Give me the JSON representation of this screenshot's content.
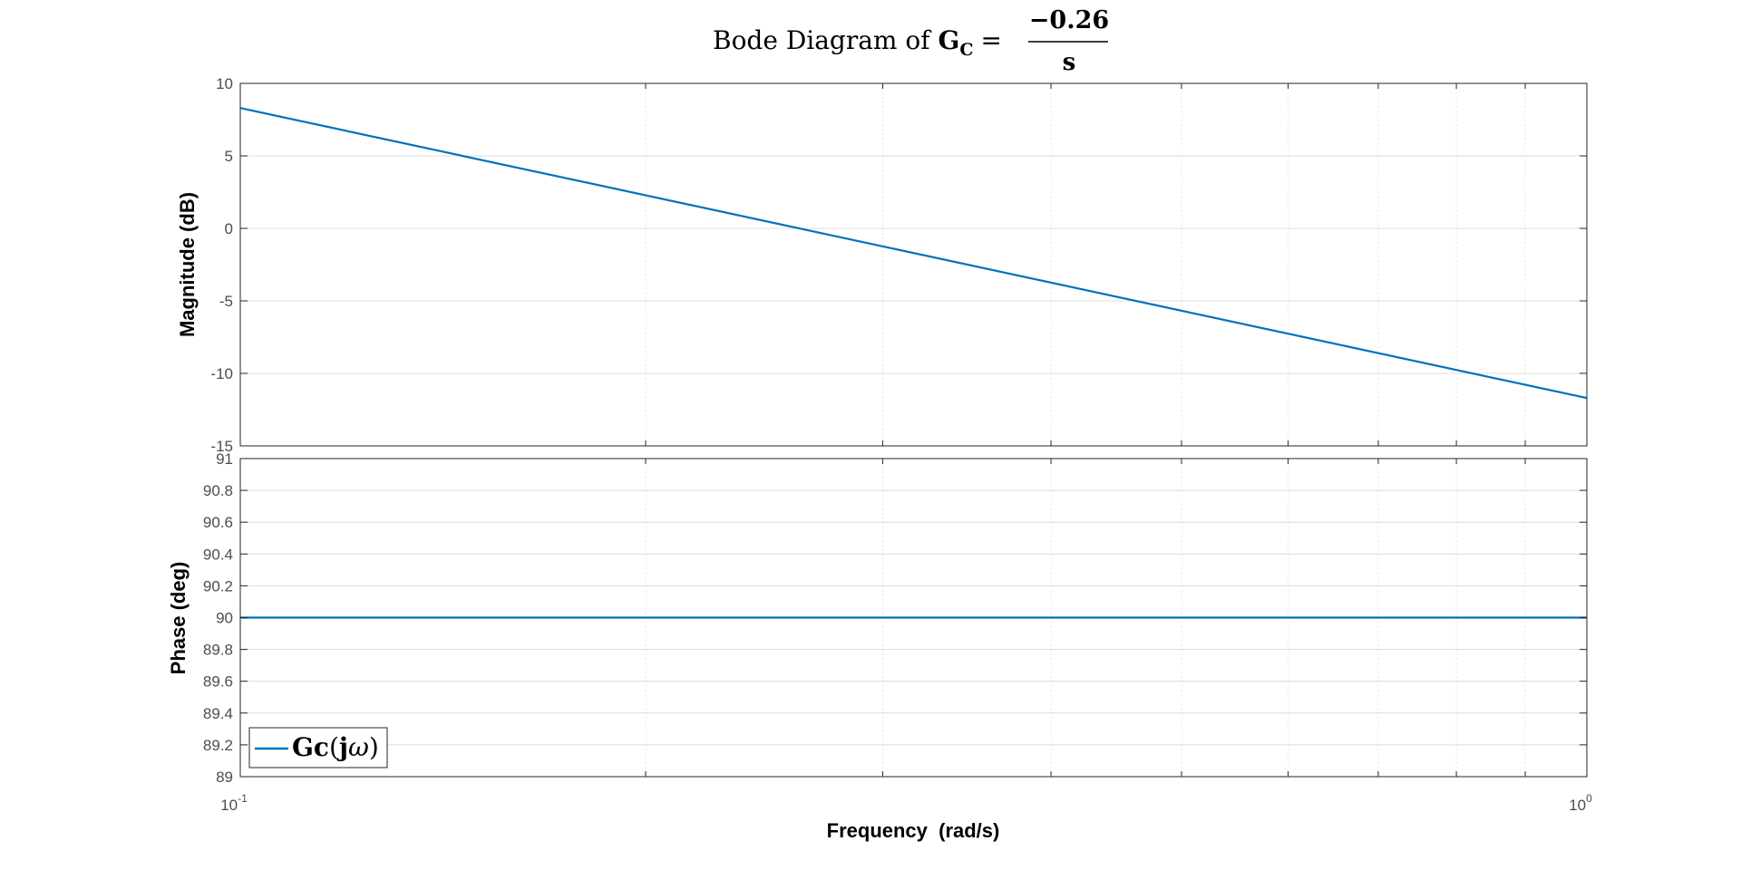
{
  "title": {
    "prefix": "Bode Diagram of ",
    "symbol": "G",
    "subscript": "C",
    "equals": "=",
    "numerator": "−0.26",
    "denominator": "s"
  },
  "chart_data": [
    {
      "type": "line",
      "panel": "magnitude",
      "ylabel": "Magnitude (dB)",
      "xscale": "log",
      "xlim": [
        0.1,
        1
      ],
      "ylim": [
        -15,
        10
      ],
      "yticks": [
        10,
        5,
        0,
        -5,
        -10,
        -15
      ],
      "grid": true,
      "series": [
        {
          "name": "Gc(jω)",
          "color": "#0072BD",
          "x": [
            0.1,
            1
          ],
          "y": [
            8.3,
            -11.7
          ]
        }
      ]
    },
    {
      "type": "line",
      "panel": "phase",
      "ylabel": "Phase (deg)",
      "xlabel": "Frequency  (rad/s)",
      "xscale": "log",
      "xlim": [
        0.1,
        1
      ],
      "xticks": [
        {
          "base": "10",
          "exp": "-1"
        },
        {
          "base": "10",
          "exp": "0"
        }
      ],
      "ylim": [
        89,
        91
      ],
      "yticks": [
        91,
        90.8,
        90.6,
        90.4,
        90.2,
        90,
        89.8,
        89.6,
        89.4,
        89.2,
        89
      ],
      "grid": true,
      "legend": {
        "location": "bottom-left",
        "entry": {
          "base": "Gc",
          "arg_open": "(",
          "j": "j",
          "omega": "ω",
          "arg_close": ")"
        }
      },
      "series": [
        {
          "name": "Gc(jω)",
          "color": "#0072BD",
          "x": [
            0.1,
            1
          ],
          "y": [
            90,
            90
          ]
        }
      ]
    }
  ]
}
